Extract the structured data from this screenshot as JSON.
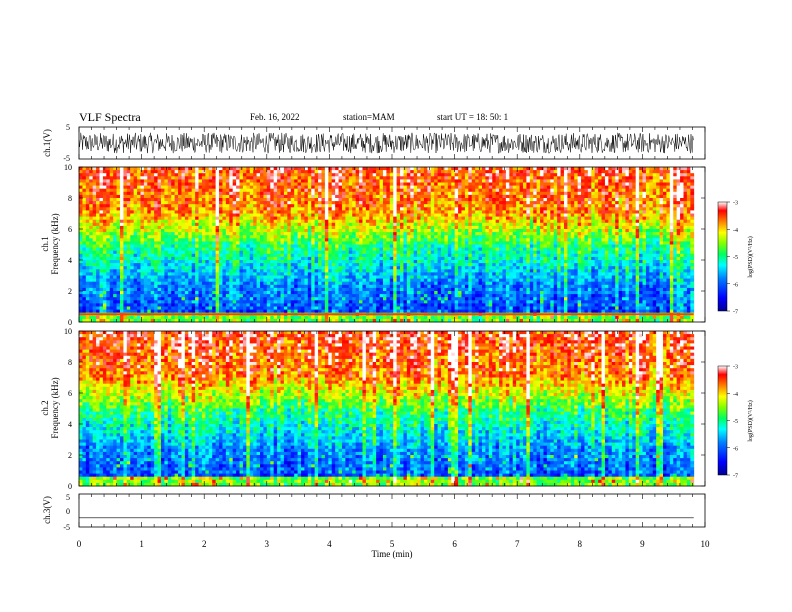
{
  "header": {
    "title": "VLF Spectra",
    "date": "Feb. 16, 2022",
    "station": "station=MAM",
    "start_ut": "start  UT =   18: 50: 1"
  },
  "chart_data": [
    {
      "id": "ch1-waveform",
      "type": "line",
      "ylabel": "ch.1(V)",
      "ylim": [
        -5,
        5
      ],
      "y_ticks": [
        "5",
        "-5"
      ],
      "xlim": [
        0,
        10
      ],
      "data_end_min": 9.82,
      "description_of_series": "dense noisy waveform, amplitude roughly ±3 V"
    },
    {
      "id": "ch1-spectrogram",
      "type": "heatmap",
      "ylabel_1": "ch.1",
      "ylabel_2": "Frequency (kHz)",
      "ylim": [
        0,
        10
      ],
      "y_ticks": [
        "0",
        "2",
        "4",
        "6",
        "8",
        "10"
      ],
      "xlim": [
        0,
        10
      ],
      "data_end_min": 9.82,
      "colorbar": {
        "label": "log(PSD)(V²/Hz)",
        "range": [
          -7,
          -3
        ],
        "ticks": [
          "-3",
          "-4",
          "-5",
          "-6",
          "-7"
        ]
      }
    },
    {
      "id": "ch2-spectrogram",
      "type": "heatmap",
      "ylabel_1": "ch.2",
      "ylabel_2": "Frequency (kHz)",
      "ylim": [
        0,
        10
      ],
      "y_ticks": [
        "0",
        "2",
        "4",
        "6",
        "8",
        "10"
      ],
      "xlim": [
        0,
        10
      ],
      "data_end_min": 9.82,
      "colorbar": {
        "label": "log(PSD)(V²/Hz)",
        "range": [
          -7,
          -3
        ],
        "ticks": [
          "-3",
          "-4",
          "-5",
          "-6",
          "-7"
        ]
      }
    },
    {
      "id": "ch3-waveform",
      "type": "line",
      "ylabel": "ch.3(V)",
      "ylim": [
        -5,
        5
      ],
      "y_ticks": [
        "5",
        "0",
        "-5"
      ],
      "xlim": [
        0,
        10
      ],
      "x_ticks": [
        "0",
        "1",
        "2",
        "3",
        "4",
        "5",
        "6",
        "7",
        "8",
        "9",
        "10"
      ],
      "xlabel": "Time (min)",
      "data_end_min": 9.82,
      "flat_value": -2.2
    }
  ],
  "colors": {
    "axis": "#000000",
    "colormap": [
      "#000090",
      "#0000ff",
      "#0080ff",
      "#00ffff",
      "#00ff60",
      "#80ff00",
      "#ffff00",
      "#ff8000",
      "#ff0000",
      "#ffffff"
    ]
  }
}
